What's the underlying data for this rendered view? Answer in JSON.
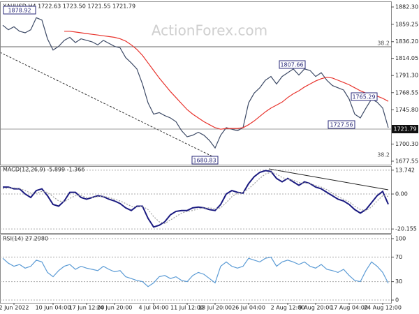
{
  "chart_data": [
    {
      "type": "line",
      "title": "XAUUSD,H4  1722.63 1723.50 1721.55 1721.79",
      "watermark": "ActionForex.com",
      "annotations": [
        "1878.92",
        "1807.66",
        "1765.29",
        "1727.56",
        "1680.83",
        "38.2",
        "38.2",
        "1721.79"
      ],
      "series": [
        {
          "color": "#3d4a66",
          "values": [
            1858,
            1852,
            1856,
            1850,
            1848,
            1852,
            1868,
            1865,
            1840,
            1825,
            1830,
            1838,
            1842,
            1835,
            1840,
            1838,
            1836,
            1832,
            1838,
            1834,
            1830,
            1828,
            1815,
            1808,
            1800,
            1780,
            1755,
            1740,
            1742,
            1738,
            1735,
            1730,
            1718,
            1710,
            1712,
            1716,
            1712,
            1705,
            1695,
            1712,
            1722,
            1720,
            1718,
            1722,
            1755,
            1768,
            1775,
            1785,
            1790,
            1780,
            1790,
            1795,
            1800,
            1792,
            1800,
            1798,
            1790,
            1795,
            1785,
            1778,
            1775,
            1772,
            1760,
            1740,
            1735,
            1748,
            1760,
            1756,
            1748,
            1722
          ]
        },
        {
          "color": "#e8322b",
          "values": [
            null,
            null,
            null,
            null,
            null,
            null,
            null,
            null,
            null,
            null,
            null,
            1850,
            1850,
            1849,
            1848,
            1847,
            1846,
            1845,
            1844,
            1843,
            1842,
            1840,
            1837,
            1832,
            1826,
            1818,
            1808,
            1798,
            1788,
            1779,
            1770,
            1762,
            1754,
            1746,
            1740,
            1735,
            1730,
            1726,
            1722,
            1720,
            1721,
            1721,
            1721,
            1722,
            1726,
            1731,
            1737,
            1743,
            1748,
            1752,
            1756,
            1762,
            1767,
            1771,
            1776,
            1780,
            1784,
            1787,
            1789,
            1788,
            1785,
            1782,
            1779,
            1775,
            1771,
            1768,
            1766,
            1764,
            1761,
            1757
          ]
        }
      ],
      "ylim": [
        1672.9,
        1889.7
      ],
      "yticks": [
        {
          "value": 1882.3,
          "label": "1882.30"
        },
        {
          "value": 1859.25,
          "label": "1859.25"
        },
        {
          "value": 1836.2,
          "label": "1836.20"
        },
        {
          "value": 1814.05,
          "label": "1814.05"
        },
        {
          "value": 1791.3,
          "label": "1791.30"
        },
        {
          "value": 1768.55,
          "label": "1768.55"
        },
        {
          "value": 1745.8,
          "label": "1745.80"
        },
        {
          "value": 1700.3,
          "label": "1700.30"
        },
        {
          "value": 1677.55,
          "label": "1677.55"
        }
      ],
      "grid": false
    },
    {
      "type": "line",
      "title": "MACD(12,26,9) -5.899 -1.366",
      "series": [
        {
          "color": "#1a1a80",
          "values": [
            4,
            4,
            3,
            3,
            0,
            -2,
            2,
            3,
            -1,
            -6,
            -7,
            -4,
            1,
            1,
            -2,
            -3,
            -2,
            -1,
            -1.5,
            -3,
            -4,
            -5.5,
            -8,
            -9.5,
            -7,
            -7,
            -14,
            -19,
            -18,
            -16,
            -12,
            -10,
            -9.5,
            -9.5,
            -8,
            -7.5,
            -8,
            -9,
            -9.5,
            -6,
            0,
            2,
            1,
            0.5,
            6,
            10,
            12.5,
            13.5,
            13,
            9,
            7,
            9,
            7,
            5,
            7,
            6,
            4,
            3,
            1,
            -1,
            -3,
            -4,
            -6,
            -9,
            -11,
            -9,
            -5,
            -1,
            1.5,
            -5.899
          ]
        },
        {
          "color": "#a0a0a0",
          "values": [
            3,
            3.5,
            3.5,
            3.2,
            2,
            0.5,
            0.5,
            1.5,
            1,
            -1.5,
            -4,
            -4.5,
            -2.5,
            -1,
            -1,
            -2,
            -2,
            -1.5,
            -1.3,
            -2,
            -3,
            -4,
            -5.5,
            -7,
            -7.5,
            -7,
            -9,
            -13,
            -16,
            -17,
            -15,
            -13,
            -11,
            -10,
            -9.5,
            -8.5,
            -8,
            -8,
            -8.5,
            -8,
            -5,
            -1.5,
            0.5,
            1,
            3,
            6,
            9,
            11.5,
            12.5,
            11.5,
            9.5,
            8.5,
            8,
            6.5,
            6.5,
            6,
            5,
            4,
            2.5,
            0.5,
            -1.5,
            -3,
            -4.5,
            -7,
            -9,
            -9.5,
            -7.5,
            -4,
            -1,
            -1.366
          ]
        }
      ],
      "ylim": [
        -22.5,
        16.1
      ],
      "yticks": [
        13.742,
        {
          "value": 0,
          "label": "0.00"
        },
        -20.155
      ],
      "grid": true
    },
    {
      "type": "line",
      "title": "RSI(14) 27.2980",
      "categories": [
        null,
        null,
        "2 Jun 2022",
        null,
        null,
        null,
        null,
        null,
        null,
        "10 Jun 04:00",
        null,
        null,
        null,
        null,
        null,
        "17 Jun 12:00",
        null,
        null,
        null,
        null,
        "24 Jun 20:00",
        null,
        null,
        null,
        null,
        null,
        null,
        "4 Jul 04:00",
        null,
        null,
        null,
        null,
        null,
        "11 Jul 12:00",
        null,
        null,
        null,
        null,
        "18 Jul 20:00",
        null,
        null,
        null,
        null,
        null,
        "26 Jul 04:00",
        null,
        null,
        null,
        null,
        null,
        null,
        "2 Aug 12:00",
        null,
        null,
        null,
        null,
        "9 Aug 20:00",
        null,
        null,
        null,
        null,
        null,
        "17 Aug 04:00",
        null,
        null,
        null,
        null,
        null,
        "24 Aug 12:00",
        null
      ],
      "series": [
        {
          "color": "#5b9bd5",
          "values": [
            68,
            60,
            55,
            58,
            52,
            55,
            65,
            62,
            45,
            38,
            48,
            55,
            58,
            50,
            55,
            52,
            50,
            48,
            55,
            50,
            46,
            48,
            38,
            35,
            32,
            30,
            22,
            28,
            38,
            40,
            35,
            38,
            32,
            30,
            40,
            45,
            42,
            35,
            28,
            55,
            62,
            55,
            52,
            55,
            68,
            65,
            62,
            68,
            70,
            55,
            62,
            65,
            62,
            58,
            62,
            55,
            52,
            58,
            50,
            48,
            45,
            50,
            40,
            32,
            30,
            48,
            62,
            55,
            45,
            27.298
          ]
        }
      ],
      "ylim": [
        -4.5,
        106.8
      ],
      "yticks": [
        100,
        70,
        30,
        0
      ],
      "grid": true
    }
  ]
}
